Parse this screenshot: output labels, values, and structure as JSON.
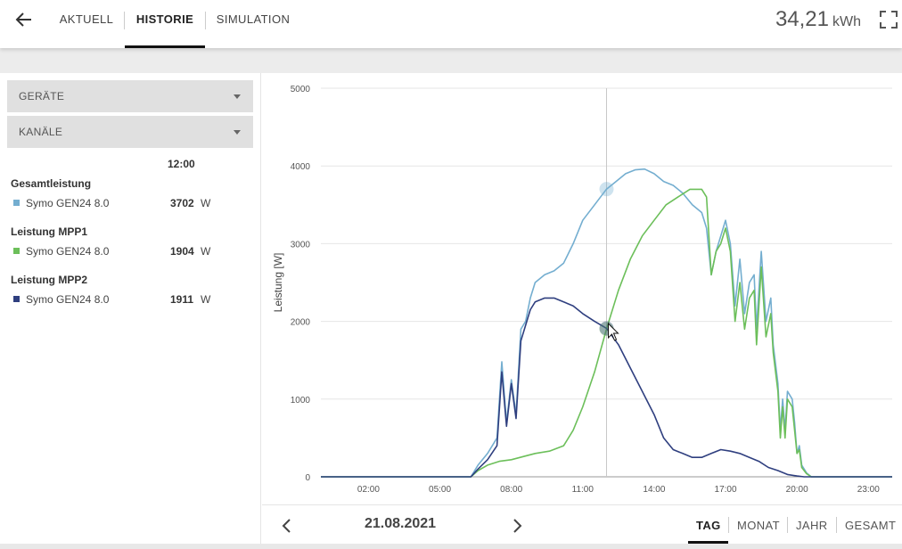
{
  "header": {
    "tabs": [
      {
        "label": "AKTUELL",
        "active": false
      },
      {
        "label": "HISTORIE",
        "active": true
      },
      {
        "label": "SIMULATION",
        "active": false
      }
    ],
    "energy_value": "34,21",
    "energy_unit": "kWh"
  },
  "sidebar": {
    "dropdowns": [
      {
        "label": "GERÄTE"
      },
      {
        "label": "KANÄLE"
      }
    ],
    "time_label": "12:00",
    "groups": [
      {
        "title": "Gesamtleistung",
        "device": "Symo GEN24 8.0",
        "value": "3702",
        "unit": "W",
        "color": "#74aed0"
      },
      {
        "title": "Leistung MPP1",
        "device": "Symo GEN24 8.0",
        "value": "1904",
        "unit": "W",
        "color": "#6cbf5a"
      },
      {
        "title": "Leistung MPP2",
        "device": "Symo GEN24 8.0",
        "value": "1911",
        "unit": "W",
        "color": "#2f3f7f"
      }
    ]
  },
  "footer": {
    "date": "21.08.2021",
    "periods": [
      {
        "label": "TAG",
        "active": true
      },
      {
        "label": "MONAT",
        "active": false
      },
      {
        "label": "JAHR",
        "active": false
      },
      {
        "label": "GESAMT",
        "active": false
      }
    ]
  },
  "chart_data": {
    "type": "line",
    "ylabel": "Leistung [W]",
    "xlabel": "",
    "ylim": [
      0,
      5000
    ],
    "xlim_hours": [
      0,
      24
    ],
    "y_ticks": [
      "0",
      "1000",
      "2000",
      "3000",
      "4000",
      "5000"
    ],
    "x_ticks": [
      {
        "h": 2,
        "label": "02:00"
      },
      {
        "h": 5,
        "label": "05:00"
      },
      {
        "h": 8,
        "label": "08:00"
      },
      {
        "h": 11,
        "label": "11:00"
      },
      {
        "h": 14,
        "label": "14:00"
      },
      {
        "h": 17,
        "label": "17:00"
      },
      {
        "h": 20,
        "label": "20:00"
      },
      {
        "h": 23,
        "label": "23:00"
      }
    ],
    "cursor_hour": 12,
    "grid": true,
    "series": [
      {
        "name": "Gesamtleistung",
        "color": "#74aed0",
        "points": [
          [
            0,
            0
          ],
          [
            6.3,
            0
          ],
          [
            6.6,
            150
          ],
          [
            7,
            300
          ],
          [
            7.4,
            500
          ],
          [
            7.6,
            1480
          ],
          [
            7.8,
            700
          ],
          [
            8.0,
            1250
          ],
          [
            8.2,
            800
          ],
          [
            8.4,
            1900
          ],
          [
            8.6,
            2000
          ],
          [
            8.8,
            2300
          ],
          [
            9.0,
            2500
          ],
          [
            9.4,
            2600
          ],
          [
            9.8,
            2650
          ],
          [
            10.2,
            2750
          ],
          [
            10.6,
            3000
          ],
          [
            11,
            3300
          ],
          [
            11.5,
            3500
          ],
          [
            12,
            3702
          ],
          [
            12.4,
            3800
          ],
          [
            12.8,
            3900
          ],
          [
            13.2,
            3950
          ],
          [
            13.6,
            3960
          ],
          [
            14,
            3900
          ],
          [
            14.4,
            3800
          ],
          [
            14.8,
            3750
          ],
          [
            15.2,
            3650
          ],
          [
            15.6,
            3500
          ],
          [
            16,
            3400
          ],
          [
            16.2,
            3200
          ],
          [
            16.4,
            2600
          ],
          [
            16.6,
            2900
          ],
          [
            16.8,
            3100
          ],
          [
            17.0,
            3300
          ],
          [
            17.2,
            3000
          ],
          [
            17.4,
            2200
          ],
          [
            17.6,
            2800
          ],
          [
            17.8,
            2100
          ],
          [
            18.0,
            2500
          ],
          [
            18.2,
            2600
          ],
          [
            18.3,
            1900
          ],
          [
            18.5,
            2900
          ],
          [
            18.7,
            2000
          ],
          [
            18.9,
            2300
          ],
          [
            19.0,
            1700
          ],
          [
            19.2,
            1200
          ],
          [
            19.3,
            600
          ],
          [
            19.4,
            1000
          ],
          [
            19.5,
            600
          ],
          [
            19.6,
            1100
          ],
          [
            19.8,
            1000
          ],
          [
            19.9,
            700
          ],
          [
            20.0,
            300
          ],
          [
            20.1,
            400
          ],
          [
            20.2,
            150
          ],
          [
            20.4,
            50
          ],
          [
            20.6,
            0
          ],
          [
            24,
            0
          ]
        ]
      },
      {
        "name": "Leistung MPP1",
        "color": "#6cbf5a",
        "points": [
          [
            0,
            0
          ],
          [
            6.3,
            0
          ],
          [
            6.6,
            80
          ],
          [
            7,
            150
          ],
          [
            7.5,
            200
          ],
          [
            8,
            220
          ],
          [
            8.5,
            260
          ],
          [
            9,
            300
          ],
          [
            9.6,
            330
          ],
          [
            10.2,
            400
          ],
          [
            10.6,
            600
          ],
          [
            11,
            900
          ],
          [
            11.5,
            1350
          ],
          [
            12,
            1904
          ],
          [
            12.5,
            2400
          ],
          [
            13,
            2800
          ],
          [
            13.5,
            3100
          ],
          [
            14,
            3300
          ],
          [
            14.5,
            3500
          ],
          [
            15,
            3600
          ],
          [
            15.5,
            3700
          ],
          [
            16,
            3700
          ],
          [
            16.2,
            3600
          ],
          [
            16.4,
            2600
          ],
          [
            16.6,
            2900
          ],
          [
            16.8,
            3000
          ],
          [
            17.0,
            3200
          ],
          [
            17.2,
            2900
          ],
          [
            17.4,
            2000
          ],
          [
            17.6,
            2500
          ],
          [
            17.8,
            1900
          ],
          [
            18.0,
            2300
          ],
          [
            18.2,
            2400
          ],
          [
            18.3,
            1700
          ],
          [
            18.5,
            2700
          ],
          [
            18.7,
            1800
          ],
          [
            18.9,
            2100
          ],
          [
            19.0,
            1600
          ],
          [
            19.2,
            1100
          ],
          [
            19.3,
            500
          ],
          [
            19.4,
            900
          ],
          [
            19.5,
            500
          ],
          [
            19.6,
            1000
          ],
          [
            19.8,
            900
          ],
          [
            19.9,
            600
          ],
          [
            20.0,
            300
          ],
          [
            20.1,
            350
          ],
          [
            20.2,
            120
          ],
          [
            20.4,
            40
          ],
          [
            20.6,
            0
          ],
          [
            24,
            0
          ]
        ]
      },
      {
        "name": "Leistung MPP2",
        "color": "#2f3f7f",
        "points": [
          [
            0,
            0
          ],
          [
            6.3,
            0
          ],
          [
            6.6,
            100
          ],
          [
            7,
            220
          ],
          [
            7.4,
            400
          ],
          [
            7.6,
            1350
          ],
          [
            7.8,
            650
          ],
          [
            8.0,
            1200
          ],
          [
            8.2,
            750
          ],
          [
            8.4,
            1750
          ],
          [
            8.6,
            1950
          ],
          [
            8.8,
            2150
          ],
          [
            9.0,
            2250
          ],
          [
            9.4,
            2300
          ],
          [
            9.8,
            2300
          ],
          [
            10.2,
            2250
          ],
          [
            10.6,
            2200
          ],
          [
            11,
            2100
          ],
          [
            11.5,
            2000
          ],
          [
            12,
            1911
          ],
          [
            12.5,
            1700
          ],
          [
            13,
            1400
          ],
          [
            13.5,
            1100
          ],
          [
            14,
            800
          ],
          [
            14.4,
            500
          ],
          [
            14.8,
            350
          ],
          [
            15.2,
            300
          ],
          [
            15.6,
            250
          ],
          [
            16,
            250
          ],
          [
            16.4,
            300
          ],
          [
            16.8,
            350
          ],
          [
            17.2,
            330
          ],
          [
            17.6,
            300
          ],
          [
            18,
            250
          ],
          [
            18.4,
            200
          ],
          [
            18.8,
            120
          ],
          [
            19.2,
            80
          ],
          [
            19.6,
            30
          ],
          [
            20,
            10
          ],
          [
            20.3,
            0
          ],
          [
            24,
            0
          ]
        ]
      }
    ]
  }
}
